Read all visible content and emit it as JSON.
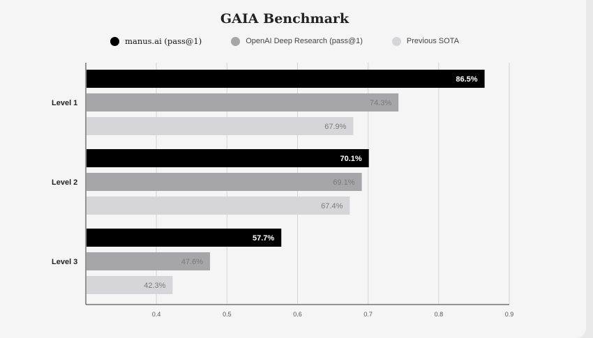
{
  "chart_data": {
    "type": "bar",
    "orientation": "horizontal",
    "title": "GAIA Benchmark",
    "categories": [
      "Level 1",
      "Level 2",
      "Level 3"
    ],
    "series": [
      {
        "name": "manus.ai (pass@1)",
        "values": [
          0.865,
          0.701,
          0.577
        ],
        "labels": [
          "86.5%",
          "70.1%",
          "57.7%"
        ],
        "color": "#000000",
        "label_color": "#ffffff"
      },
      {
        "name": "OpenAI Deep Research (pass@1)",
        "values": [
          0.743,
          0.691,
          0.476
        ],
        "labels": [
          "74.3%",
          "69.1%",
          "47.6%"
        ],
        "color": "#a6a6a8",
        "label_color": "#7a7a7a"
      },
      {
        "name": "Previous SOTA",
        "values": [
          0.679,
          0.674,
          0.423
        ],
        "labels": [
          "67.9%",
          "67.4%",
          "42.3%"
        ],
        "color": "#d6d6d8",
        "label_color": "#7a7a7a"
      }
    ],
    "xlim": [
      0.3,
      0.9
    ],
    "xticks": [
      "0.4",
      "0.5",
      "0.6",
      "0.7",
      "0.8",
      "0.9"
    ],
    "xlabel": "",
    "ylabel": "",
    "grid": true,
    "legend_position": "top"
  }
}
